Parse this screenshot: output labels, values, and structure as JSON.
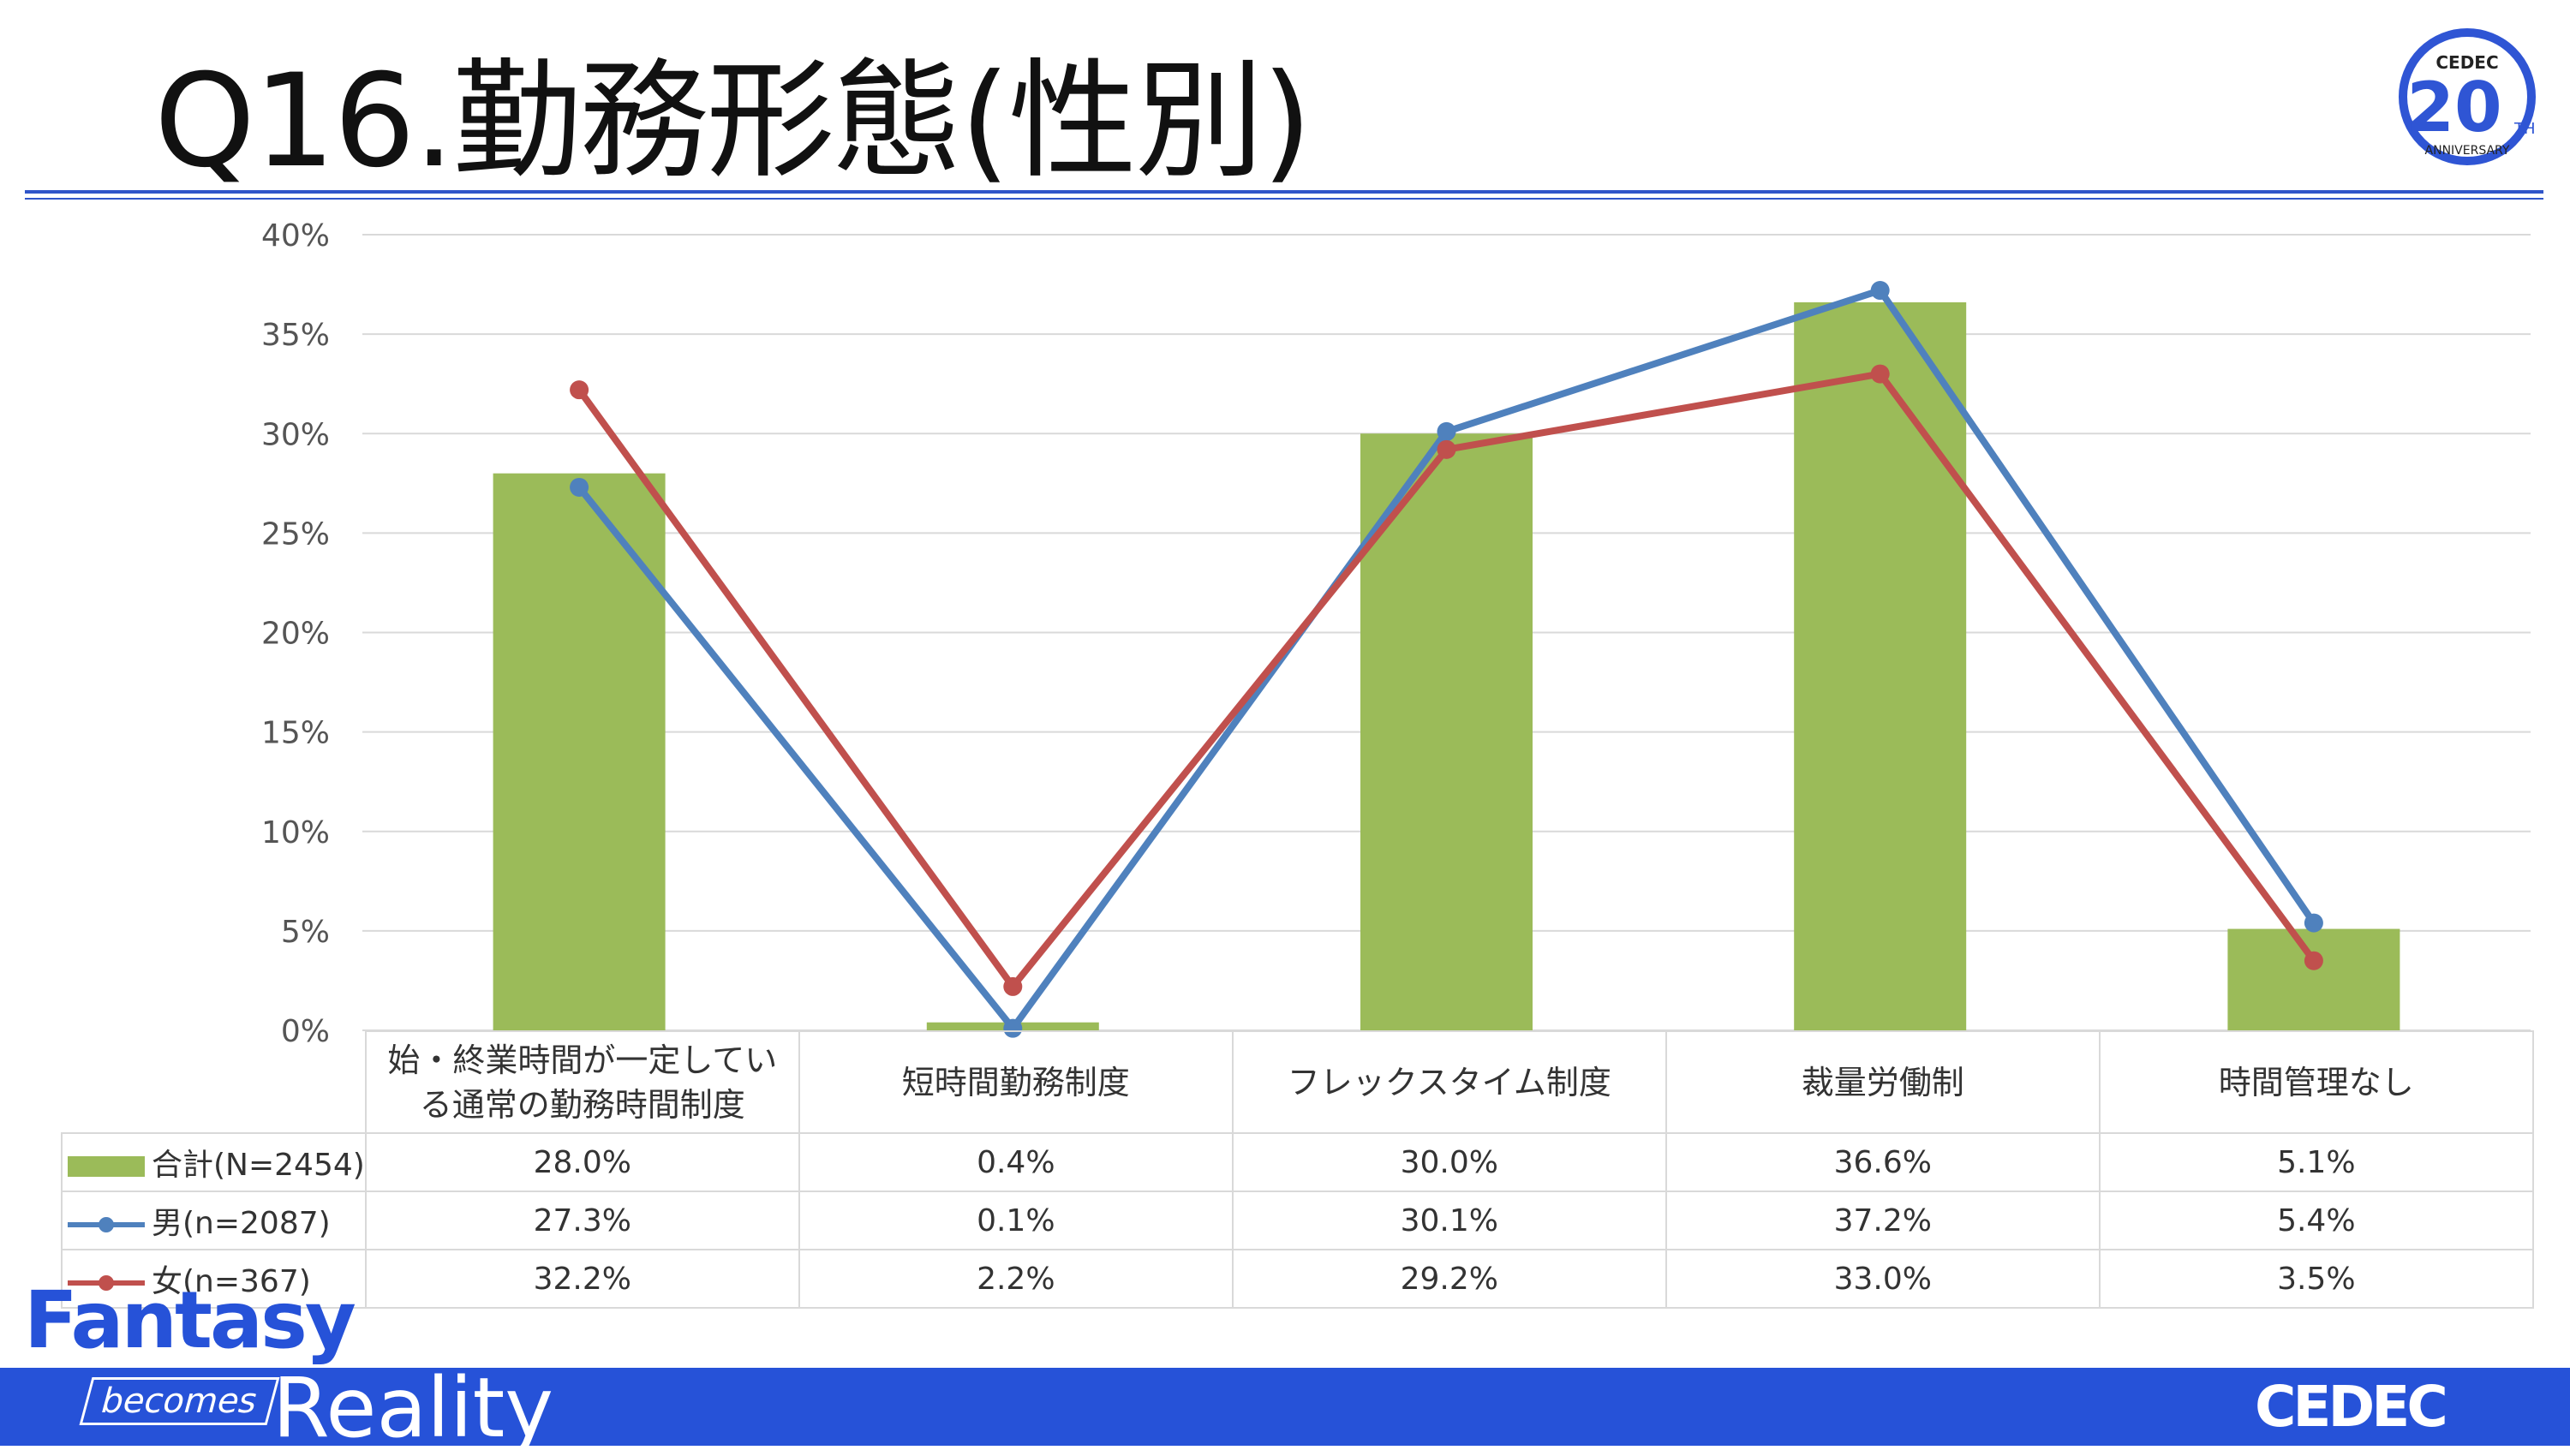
{
  "title": "Q16.勤務形態(性別)",
  "logo": {
    "top_text": "CEDEC",
    "number": "20",
    "suffix": "TH",
    "bottom_text": "ANNIVERSARY"
  },
  "footer": {
    "fantasy": "Fantasy",
    "becomes": "becomes",
    "reality": "Reality",
    "brand": "CEDEC"
  },
  "colors": {
    "total": "#9bbb59",
    "male": "#4f81bd",
    "female": "#c0504d",
    "band": "#2652d8"
  },
  "chart_data": {
    "type": "bar+line",
    "categories": [
      "始・終業時間が一定している通常の勤務時間制度",
      "短時間勤務制度",
      "フレックスタイム制度",
      "裁量労働制",
      "時間管理なし"
    ],
    "category_lines": [
      [
        "始・終業時間が一定してい",
        "る通常の勤務時間制度"
      ],
      [
        "短時間勤務制度"
      ],
      [
        "フレックスタイム制度"
      ],
      [
        "裁量労働制"
      ],
      [
        "時間管理なし"
      ]
    ],
    "series": [
      {
        "name": "合計(N=2454)",
        "type": "bar",
        "values": [
          28.0,
          0.4,
          30.0,
          36.6,
          5.1
        ],
        "labels": [
          "28.0%",
          "0.4%",
          "30.0%",
          "36.6%",
          "5.1%"
        ]
      },
      {
        "name": "男(n=2087)",
        "type": "line",
        "values": [
          27.3,
          0.1,
          30.1,
          37.2,
          5.4
        ],
        "labels": [
          "27.3%",
          "0.1%",
          "30.1%",
          "37.2%",
          "5.4%"
        ]
      },
      {
        "name": "女(n=367)",
        "type": "line",
        "values": [
          32.2,
          2.2,
          29.2,
          33.0,
          3.5
        ],
        "labels": [
          "32.2%",
          "2.2%",
          "29.2%",
          "33.0%",
          "3.5%"
        ]
      }
    ],
    "yticks": [
      "0%",
      "5%",
      "10%",
      "15%",
      "20%",
      "25%",
      "30%",
      "35%",
      "40%"
    ],
    "ylim": [
      0,
      40
    ],
    "grid": true,
    "legend": "data-table"
  }
}
